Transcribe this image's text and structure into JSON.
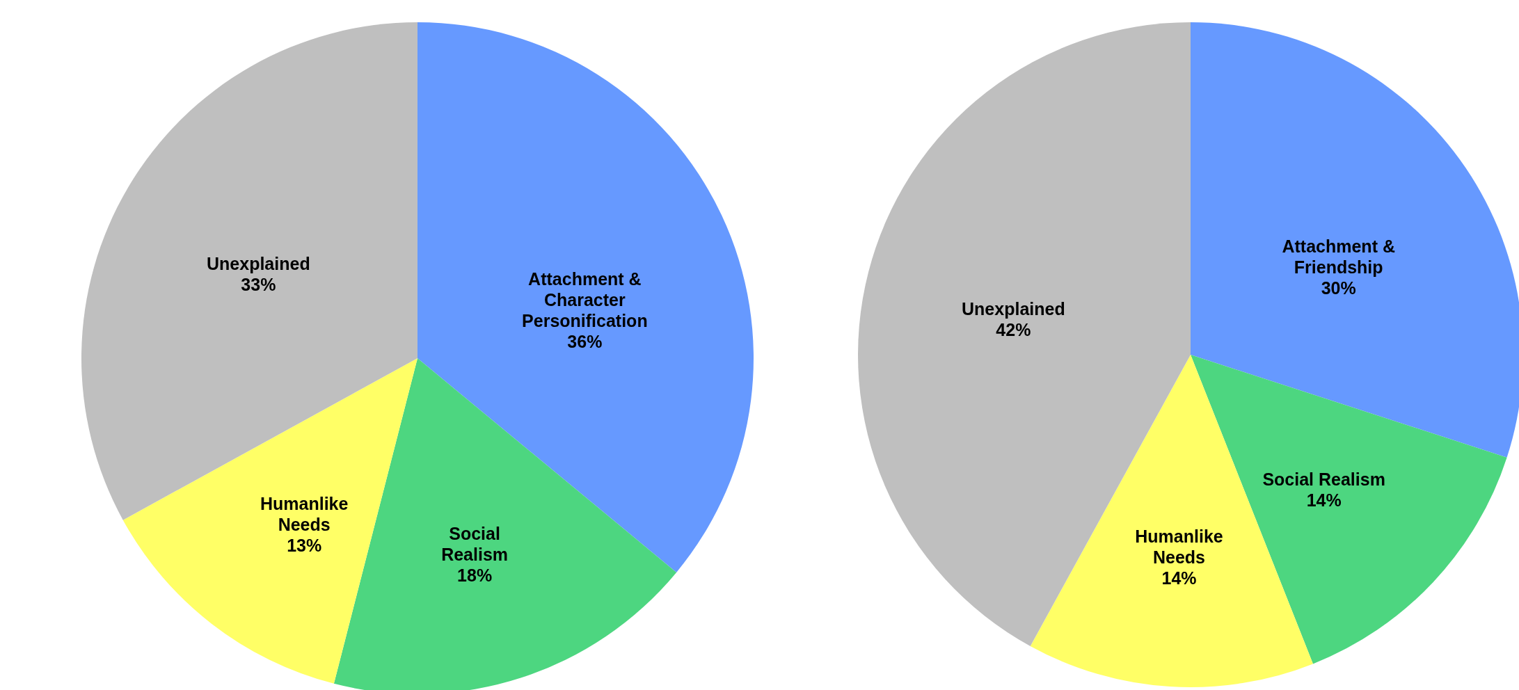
{
  "chart_data": [
    {
      "type": "pie",
      "categories": [
        "Attachment & Character Personification",
        "Social Realism",
        "Humanlike Needs",
        "Unexplained"
      ],
      "values": [
        36,
        18,
        13,
        33
      ],
      "value_labels": [
        "36%",
        "18%",
        "13%",
        "33%"
      ],
      "colors": [
        "#6699ff",
        "#4dd680",
        "#ffff66",
        "#bfbfbf"
      ]
    },
    {
      "type": "pie",
      "categories": [
        "Attachment & Friendship",
        "Social Realism",
        "Humanlike Needs",
        "Unexplained"
      ],
      "values": [
        30,
        14,
        14,
        42
      ],
      "value_labels": [
        "30%",
        "14%",
        "14%",
        "42%"
      ],
      "colors": [
        "#6699ff",
        "#4dd680",
        "#ffff66",
        "#bfbfbf"
      ]
    }
  ]
}
